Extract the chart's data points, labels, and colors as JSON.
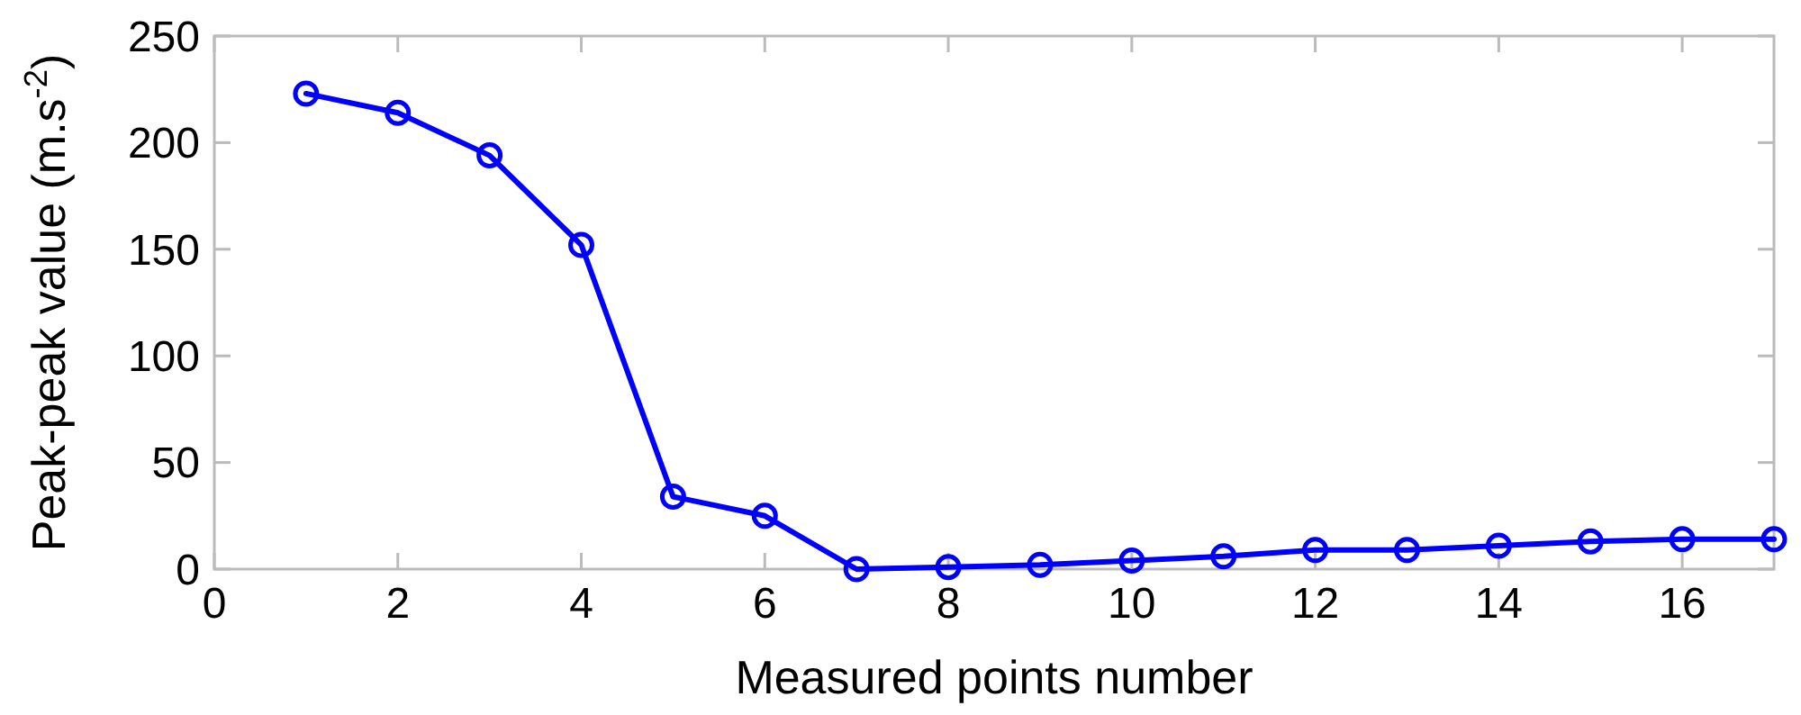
{
  "chart_data": {
    "type": "line",
    "xlabel": "Measured points number",
    "ylabel": "Peak-peak value (m.s$^{-2}$)",
    "x": [
      1,
      2,
      3,
      4,
      5,
      6,
      7,
      8,
      9,
      10,
      11,
      12,
      13,
      14,
      15,
      16,
      17
    ],
    "series": [
      {
        "color": "#0000ff",
        "values": [
          223,
          214,
          194,
          152,
          34,
          25,
          0,
          1,
          2,
          4,
          6,
          9,
          9,
          11,
          13,
          14,
          14
        ]
      }
    ],
    "xlim": [
      0,
      17
    ],
    "xticks": [
      0,
      2,
      4,
      6,
      8,
      10,
      12,
      14,
      16
    ],
    "ylim": [
      0,
      250
    ],
    "yticks": [
      0,
      50,
      100,
      150,
      200,
      250
    ],
    "grid": false,
    "marker": "circle",
    "line_style": "solid"
  }
}
